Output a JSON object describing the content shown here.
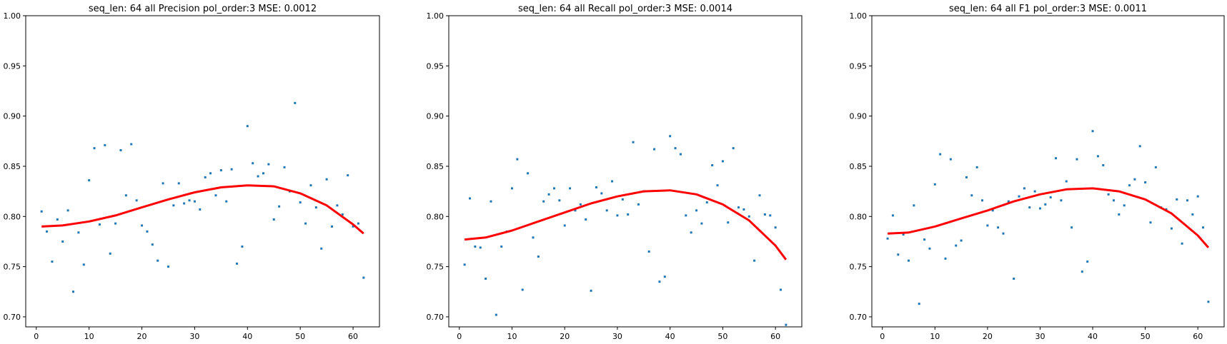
{
  "figure": {
    "colors": {
      "points": "#1f77b4",
      "fit": "#ff0000",
      "axes": "#000000"
    }
  },
  "chart_data": [
    {
      "type": "scatter",
      "title": "seq_len: 64    all   Precision   pol_order:3   MSE: 0.0012",
      "xlim": [
        -2,
        65
      ],
      "ylim": [
        0.69,
        1.0
      ],
      "xticks": [
        "0",
        "10",
        "20",
        "30",
        "40",
        "50",
        "60"
      ],
      "yticks": [
        "0.70",
        "0.75",
        "0.80",
        "0.85",
        "0.90",
        "0.95",
        "1.00"
      ],
      "series": [
        {
          "kind": "points",
          "x": [
            1,
            2,
            3,
            4,
            5,
            6,
            7,
            8,
            9,
            10,
            11,
            12,
            13,
            14,
            15,
            16,
            17,
            18,
            19,
            20,
            21,
            22,
            23,
            24,
            25,
            26,
            27,
            28,
            29,
            30,
            31,
            32,
            33,
            34,
            35,
            36,
            37,
            38,
            39,
            40,
            41,
            42,
            43,
            44,
            45,
            46,
            47,
            48,
            49,
            50,
            51,
            52,
            53,
            54,
            55,
            56,
            57,
            58,
            59,
            60,
            61,
            62
          ],
          "y": [
            0.805,
            0.785,
            0.755,
            0.797,
            0.775,
            0.806,
            0.725,
            0.784,
            0.752,
            0.836,
            0.868,
            0.792,
            0.871,
            0.763,
            0.793,
            0.866,
            0.821,
            0.872,
            0.816,
            0.791,
            0.785,
            0.772,
            0.756,
            0.833,
            0.75,
            0.811,
            0.833,
            0.813,
            0.816,
            0.815,
            0.807,
            0.839,
            0.843,
            0.821,
            0.846,
            0.815,
            0.847,
            0.753,
            0.77,
            0.89,
            0.853,
            0.84,
            0.843,
            0.852,
            0.797,
            0.81,
            0.849,
            0.825,
            0.913,
            0.814,
            0.793,
            0.831,
            0.809,
            0.768,
            0.837,
            0.79,
            0.811,
            0.802,
            0.841,
            0.79,
            0.793,
            0.739
          ]
        },
        {
          "kind": "fit",
          "x": [
            1,
            5,
            10,
            15,
            20,
            25,
            30,
            35,
            40,
            45,
            50,
            55,
            60,
            62
          ],
          "y": [
            0.79,
            0.791,
            0.795,
            0.801,
            0.809,
            0.817,
            0.824,
            0.829,
            0.831,
            0.83,
            0.823,
            0.811,
            0.792,
            0.783
          ]
        }
      ]
    },
    {
      "type": "scatter",
      "title": "seq_len: 64    all   Recall   pol_order:3   MSE: 0.0014",
      "xlim": [
        -2,
        65
      ],
      "ylim": [
        0.69,
        1.0
      ],
      "xticks": [
        "0",
        "10",
        "20",
        "30",
        "40",
        "50",
        "60"
      ],
      "yticks": [
        "0.70",
        "0.75",
        "0.80",
        "0.85",
        "0.90",
        "0.95",
        "1.00"
      ],
      "series": [
        {
          "kind": "points",
          "x": [
            1,
            2,
            3,
            4,
            5,
            6,
            7,
            8,
            9,
            10,
            11,
            12,
            13,
            14,
            15,
            16,
            17,
            18,
            19,
            20,
            21,
            22,
            23,
            24,
            25,
            26,
            27,
            28,
            29,
            30,
            31,
            32,
            33,
            34,
            35,
            36,
            37,
            38,
            39,
            40,
            41,
            42,
            43,
            44,
            45,
            46,
            47,
            48,
            49,
            50,
            51,
            52,
            53,
            54,
            55,
            56,
            57,
            58,
            59,
            60,
            61,
            62
          ],
          "y": [
            0.752,
            0.818,
            0.77,
            0.769,
            0.738,
            0.815,
            0.702,
            0.77,
            0.785,
            0.828,
            0.857,
            0.727,
            0.843,
            0.779,
            0.76,
            0.815,
            0.822,
            0.828,
            0.816,
            0.791,
            0.828,
            0.806,
            0.812,
            0.797,
            0.726,
            0.829,
            0.823,
            0.806,
            0.835,
            0.801,
            0.817,
            0.802,
            0.874,
            0.812,
            0.825,
            0.765,
            0.867,
            0.735,
            0.74,
            0.88,
            0.868,
            0.862,
            0.801,
            0.784,
            0.806,
            0.793,
            0.814,
            0.851,
            0.831,
            0.855,
            0.794,
            0.868,
            0.809,
            0.807,
            0.8,
            0.756,
            0.821,
            0.802,
            0.801,
            0.789,
            0.727,
            0.692
          ]
        },
        {
          "kind": "fit",
          "x": [
            1,
            5,
            10,
            15,
            20,
            25,
            30,
            35,
            40,
            45,
            50,
            55,
            60,
            62
          ],
          "y": [
            0.777,
            0.779,
            0.786,
            0.795,
            0.804,
            0.813,
            0.82,
            0.825,
            0.826,
            0.822,
            0.812,
            0.796,
            0.771,
            0.757
          ]
        }
      ]
    },
    {
      "type": "scatter",
      "title": "seq_len: 64    all   F1   pol_order:3   MSE: 0.0011",
      "xlim": [
        -2,
        65
      ],
      "ylim": [
        0.69,
        1.0
      ],
      "xticks": [
        "0",
        "10",
        "20",
        "30",
        "40",
        "50",
        "60"
      ],
      "yticks": [
        "0.70",
        "0.75",
        "0.80",
        "0.85",
        "0.90",
        "0.95",
        "1.00"
      ],
      "series": [
        {
          "kind": "points",
          "x": [
            1,
            2,
            3,
            4,
            5,
            6,
            7,
            8,
            9,
            10,
            11,
            12,
            13,
            14,
            15,
            16,
            17,
            18,
            19,
            20,
            21,
            22,
            23,
            24,
            25,
            26,
            27,
            28,
            29,
            30,
            31,
            32,
            33,
            34,
            35,
            36,
            37,
            38,
            39,
            40,
            41,
            42,
            43,
            44,
            45,
            46,
            47,
            48,
            49,
            50,
            51,
            52,
            53,
            54,
            55,
            56,
            57,
            58,
            59,
            60,
            61,
            62
          ],
          "y": [
            0.778,
            0.801,
            0.762,
            0.782,
            0.756,
            0.811,
            0.713,
            0.777,
            0.768,
            0.832,
            0.862,
            0.758,
            0.857,
            0.771,
            0.776,
            0.839,
            0.821,
            0.849,
            0.816,
            0.791,
            0.806,
            0.789,
            0.783,
            0.815,
            0.738,
            0.82,
            0.828,
            0.809,
            0.825,
            0.808,
            0.812,
            0.819,
            0.858,
            0.816,
            0.835,
            0.789,
            0.857,
            0.745,
            0.755,
            0.885,
            0.86,
            0.851,
            0.822,
            0.816,
            0.802,
            0.811,
            0.831,
            0.837,
            0.87,
            0.834,
            0.794,
            0.849,
            0.809,
            0.807,
            0.788,
            0.817,
            0.773,
            0.816,
            0.802,
            0.82,
            0.789,
            0.715
          ]
        },
        {
          "kind": "fit",
          "x": [
            1,
            5,
            10,
            15,
            20,
            25,
            30,
            35,
            40,
            45,
            50,
            55,
            60,
            62
          ],
          "y": [
            0.783,
            0.784,
            0.79,
            0.798,
            0.806,
            0.815,
            0.822,
            0.827,
            0.828,
            0.825,
            0.817,
            0.803,
            0.781,
            0.769
          ]
        }
      ]
    }
  ]
}
